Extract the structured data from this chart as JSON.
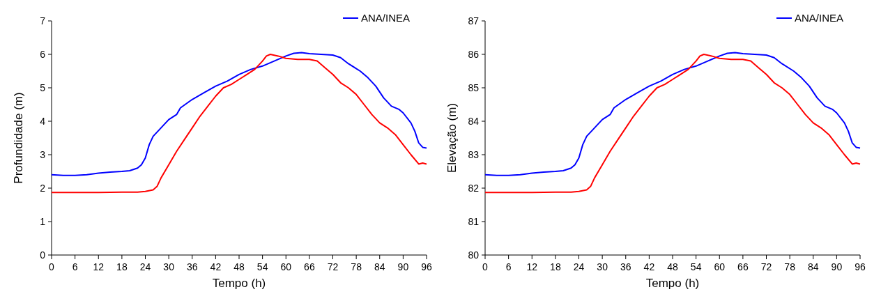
{
  "chart_data": [
    {
      "type": "line",
      "xlabel": "Tempo (h)",
      "ylabel": "Profundidade (m)",
      "xlim": [
        0,
        96
      ],
      "xticks": [
        0,
        6,
        12,
        18,
        24,
        30,
        36,
        42,
        48,
        54,
        60,
        66,
        72,
        78,
        84,
        90,
        96
      ],
      "ylim": [
        0,
        7
      ],
      "yticks": [
        0,
        1,
        2,
        3,
        4,
        5,
        6,
        7
      ],
      "grid": false,
      "legend": "top right",
      "marker": "none",
      "line_style": "solid",
      "series": [
        {
          "name": "ANA/INEA",
          "color": "#0000ff",
          "x": [
            0,
            3,
            6,
            9,
            12,
            15,
            18,
            20,
            22,
            23,
            24,
            25,
            26,
            28,
            30,
            32,
            33,
            36,
            39,
            42,
            45,
            48,
            51,
            54,
            57,
            60,
            62,
            64,
            66,
            69,
            72,
            74,
            76,
            79,
            81,
            83,
            85,
            87,
            89,
            90,
            92,
            93,
            94,
            95,
            96
          ],
          "values": [
            2.4,
            2.38,
            2.38,
            2.4,
            2.45,
            2.48,
            2.5,
            2.52,
            2.6,
            2.7,
            2.9,
            3.3,
            3.55,
            3.8,
            4.05,
            4.2,
            4.4,
            4.65,
            4.85,
            5.05,
            5.2,
            5.4,
            5.55,
            5.65,
            5.8,
            5.95,
            6.03,
            6.05,
            6.02,
            6.0,
            5.98,
            5.9,
            5.72,
            5.5,
            5.3,
            5.05,
            4.7,
            4.45,
            4.35,
            4.25,
            3.95,
            3.7,
            3.35,
            3.22,
            3.2
          ]
        },
        {
          "color": "#ff0000",
          "x": [
            0,
            6,
            12,
            18,
            22,
            24,
            26,
            27,
            28,
            30,
            32,
            34,
            36,
            38,
            40,
            42,
            44,
            46,
            48,
            50,
            52,
            54,
            55,
            56,
            58,
            60,
            63,
            66,
            68,
            70,
            72,
            74,
            76,
            78,
            80,
            82,
            84,
            86,
            88,
            90,
            92,
            94,
            95,
            96
          ],
          "values": [
            1.87,
            1.87,
            1.87,
            1.88,
            1.88,
            1.9,
            1.95,
            2.05,
            2.3,
            2.7,
            3.1,
            3.45,
            3.8,
            4.15,
            4.45,
            4.75,
            5.0,
            5.1,
            5.25,
            5.4,
            5.55,
            5.8,
            5.95,
            6.0,
            5.95,
            5.88,
            5.85,
            5.85,
            5.8,
            5.6,
            5.4,
            5.15,
            5.0,
            4.8,
            4.5,
            4.2,
            3.95,
            3.8,
            3.6,
            3.3,
            3.0,
            2.72,
            2.75,
            2.72
          ]
        }
      ]
    },
    {
      "type": "line",
      "xlabel": "Tempo (h)",
      "ylabel": "Elevação (m)",
      "xlim": [
        0,
        96
      ],
      "xticks": [
        0,
        6,
        12,
        18,
        24,
        30,
        36,
        42,
        48,
        54,
        60,
        66,
        72,
        78,
        84,
        90,
        96
      ],
      "ylim": [
        80,
        87
      ],
      "yticks": [
        80,
        81,
        82,
        83,
        84,
        85,
        86,
        87
      ],
      "grid": false,
      "legend": "top right",
      "marker": "none",
      "line_style": "solid",
      "series": [
        {
          "name": "ANA/INEA",
          "color": "#0000ff",
          "x": [
            0,
            3,
            6,
            9,
            12,
            15,
            18,
            20,
            22,
            23,
            24,
            25,
            26,
            28,
            30,
            32,
            33,
            36,
            39,
            42,
            45,
            48,
            51,
            54,
            57,
            60,
            62,
            64,
            66,
            69,
            72,
            74,
            76,
            79,
            81,
            83,
            85,
            87,
            89,
            90,
            92,
            93,
            94,
            95,
            96
          ],
          "values": [
            82.4,
            82.38,
            82.38,
            82.4,
            82.45,
            82.48,
            82.5,
            82.52,
            82.6,
            82.7,
            82.9,
            83.3,
            83.55,
            83.8,
            84.05,
            84.2,
            84.4,
            84.65,
            84.85,
            85.05,
            85.2,
            85.4,
            85.55,
            85.65,
            85.8,
            85.95,
            86.03,
            86.05,
            86.02,
            86.0,
            85.98,
            85.9,
            85.72,
            85.5,
            85.3,
            85.05,
            84.7,
            84.45,
            84.35,
            84.25,
            83.95,
            83.7,
            83.35,
            83.22,
            83.2
          ]
        },
        {
          "color": "#ff0000",
          "x": [
            0,
            6,
            12,
            18,
            22,
            24,
            26,
            27,
            28,
            30,
            32,
            34,
            36,
            38,
            40,
            42,
            44,
            46,
            48,
            50,
            52,
            54,
            55,
            56,
            58,
            60,
            63,
            66,
            68,
            70,
            72,
            74,
            76,
            78,
            80,
            82,
            84,
            86,
            88,
            90,
            92,
            94,
            95,
            96
          ],
          "values": [
            81.87,
            81.87,
            81.87,
            81.88,
            81.88,
            81.9,
            81.95,
            82.05,
            82.3,
            82.7,
            83.1,
            83.45,
            83.8,
            84.15,
            84.45,
            84.75,
            85.0,
            85.1,
            85.25,
            85.4,
            85.55,
            85.8,
            85.95,
            86.0,
            85.95,
            85.88,
            85.85,
            85.85,
            85.8,
            85.6,
            85.4,
            85.15,
            85.0,
            84.8,
            84.5,
            84.2,
            83.95,
            83.8,
            83.6,
            83.3,
            83.0,
            82.72,
            82.75,
            82.72
          ]
        }
      ]
    }
  ]
}
